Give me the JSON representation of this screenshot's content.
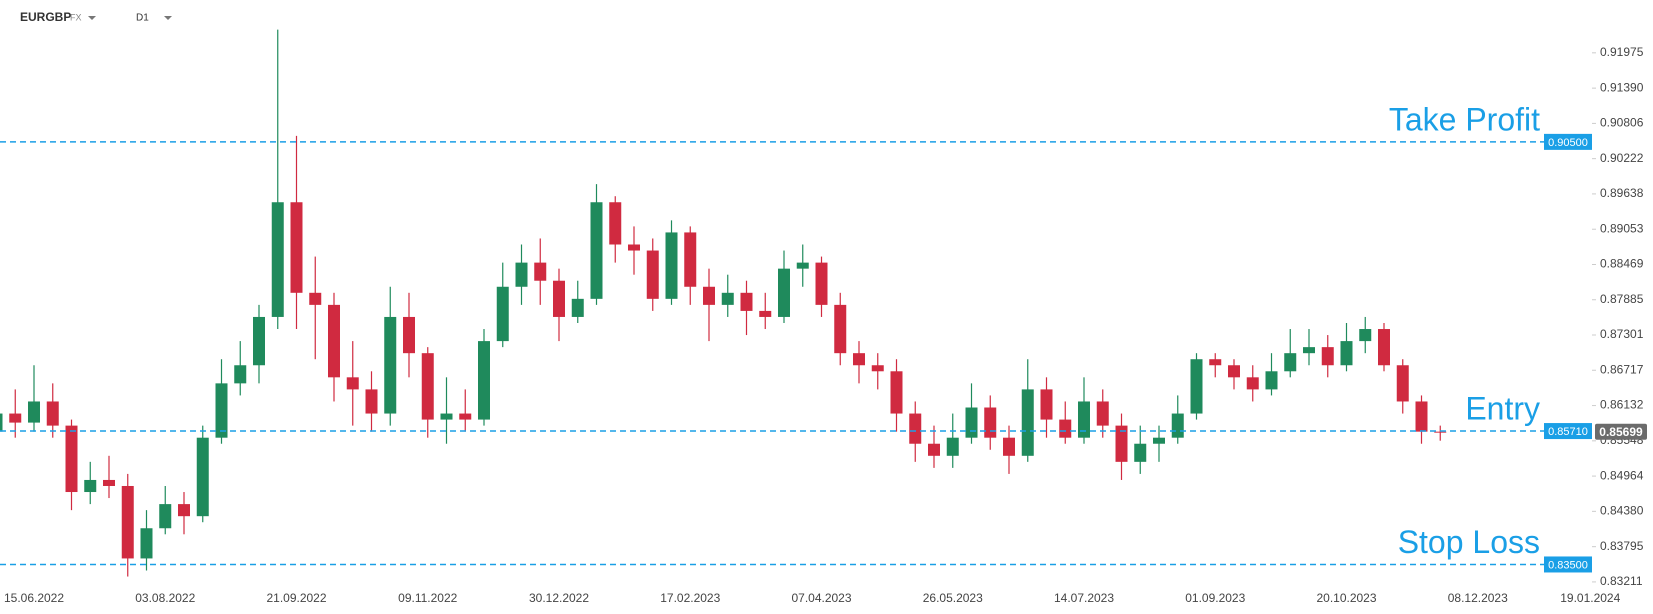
{
  "toolbar": {
    "symbol": "EURGBP",
    "market": "FX",
    "timeframe": "D1"
  },
  "chart_data": {
    "type": "candlestick",
    "categories": [
      null,
      null,
      "15.06.2022",
      null,
      null,
      null,
      null,
      null,
      null,
      "03.08.2022",
      null,
      null,
      null,
      null,
      null,
      null,
      "21.09.2022",
      null,
      null,
      null,
      null,
      null,
      null,
      "09.11.2022",
      null,
      null,
      null,
      null,
      null,
      null,
      "30.12.2022",
      null,
      null,
      null,
      null,
      null,
      null,
      "17.02.2023",
      null,
      null,
      null,
      null,
      null,
      null,
      "07.04.2023",
      null,
      null,
      null,
      null,
      null,
      null,
      "26.05.2023",
      null,
      null,
      null,
      null,
      null,
      null,
      "14.07.2023",
      null,
      null,
      null,
      null,
      null,
      null,
      "01.09.2023",
      null,
      null,
      null,
      null,
      null,
      null,
      "20.10.2023",
      null,
      null,
      null,
      null,
      null,
      null,
      "08.12.2023",
      null,
      null,
      null,
      null,
      null,
      "19.01.2024"
    ],
    "open": [
      0.857,
      0.86,
      0.8585,
      0.862,
      0.858,
      0.847,
      0.849,
      0.848,
      0.836,
      0.841,
      0.845,
      0.843,
      0.856,
      0.865,
      0.868,
      0.876,
      0.895,
      0.88,
      0.878,
      0.866,
      0.864,
      0.86,
      0.876,
      0.87,
      0.859,
      0.86,
      0.859,
      0.872,
      0.881,
      0.885,
      0.882,
      0.876,
      0.879,
      0.895,
      0.888,
      0.887,
      0.879,
      0.89,
      0.881,
      0.878,
      0.88,
      0.877,
      0.876,
      0.884,
      0.885,
      0.878,
      0.87,
      0.868,
      0.867,
      0.86,
      0.855,
      0.853,
      0.856,
      0.861,
      0.856,
      0.853,
      0.864,
      0.859,
      0.856,
      0.862,
      0.858,
      0.852,
      0.855,
      0.856,
      0.86,
      0.869,
      0.868,
      0.866,
      0.864,
      0.867,
      0.87,
      0.871,
      0.868,
      0.872,
      0.874,
      0.868,
      0.862,
      0.857,
      null,
      null,
      null,
      null,
      null,
      null,
      null,
      null
    ],
    "high": [
      0.868,
      0.864,
      0.868,
      0.865,
      0.859,
      0.852,
      0.853,
      0.85,
      0.844,
      0.848,
      0.847,
      0.858,
      0.869,
      0.872,
      0.878,
      0.9236,
      0.906,
      0.886,
      0.88,
      0.872,
      0.867,
      0.881,
      0.88,
      0.871,
      0.866,
      0.864,
      0.874,
      0.885,
      0.888,
      0.889,
      0.884,
      0.882,
      0.898,
      0.896,
      0.891,
      0.889,
      0.892,
      0.891,
      0.884,
      0.883,
      0.882,
      0.88,
      0.887,
      0.888,
      0.886,
      0.88,
      0.872,
      0.87,
      0.869,
      0.862,
      0.858,
      0.86,
      0.865,
      0.863,
      0.858,
      0.869,
      0.866,
      0.862,
      0.866,
      0.864,
      0.86,
      0.858,
      0.858,
      0.863,
      0.87,
      0.87,
      0.869,
      0.868,
      0.87,
      0.874,
      0.874,
      0.873,
      0.875,
      0.876,
      0.875,
      0.869,
      0.863,
      0.858,
      null,
      null,
      null,
      null,
      null,
      null,
      null,
      null
    ],
    "low": [
      0.853,
      0.856,
      0.857,
      0.856,
      0.844,
      0.845,
      0.846,
      0.833,
      0.834,
      0.84,
      0.84,
      0.842,
      0.855,
      0.863,
      0.865,
      0.874,
      0.874,
      0.869,
      0.862,
      0.858,
      0.857,
      0.858,
      0.866,
      0.856,
      0.855,
      0.857,
      0.858,
      0.871,
      0.878,
      0.878,
      0.872,
      0.875,
      0.878,
      0.885,
      0.883,
      0.877,
      0.878,
      0.878,
      0.872,
      0.876,
      0.873,
      0.874,
      0.875,
      0.881,
      0.876,
      0.868,
      0.865,
      0.864,
      0.857,
      0.852,
      0.851,
      0.851,
      0.855,
      0.854,
      0.85,
      0.852,
      0.856,
      0.855,
      0.855,
      0.856,
      0.849,
      0.85,
      0.852,
      0.855,
      0.859,
      0.866,
      0.864,
      0.862,
      0.863,
      0.866,
      0.868,
      0.866,
      0.867,
      0.87,
      0.867,
      0.86,
      0.855,
      0.8555,
      null,
      null,
      null,
      null,
      null,
      null,
      null,
      null
    ],
    "close": [
      0.86,
      0.8585,
      0.862,
      0.858,
      0.847,
      0.849,
      0.848,
      0.836,
      0.841,
      0.845,
      0.843,
      0.856,
      0.865,
      0.868,
      0.876,
      0.895,
      0.88,
      0.878,
      0.866,
      0.864,
      0.86,
      0.876,
      0.87,
      0.859,
      0.86,
      0.859,
      0.872,
      0.881,
      0.885,
      0.882,
      0.876,
      0.879,
      0.895,
      0.888,
      0.887,
      0.879,
      0.89,
      0.881,
      0.878,
      0.88,
      0.877,
      0.876,
      0.884,
      0.885,
      0.878,
      0.87,
      0.868,
      0.867,
      0.86,
      0.855,
      0.853,
      0.856,
      0.861,
      0.856,
      0.853,
      0.864,
      0.859,
      0.856,
      0.862,
      0.858,
      0.852,
      0.855,
      0.856,
      0.86,
      0.869,
      0.868,
      0.866,
      0.864,
      0.867,
      0.87,
      0.871,
      0.868,
      0.872,
      0.874,
      0.868,
      0.862,
      0.857,
      0.85699,
      null,
      null,
      null,
      null,
      null,
      null,
      null,
      null
    ],
    "up_color": "#1f8a5c",
    "down_color": "#d02a40",
    "ylim": [
      0.8316,
      0.9285
    ],
    "yticks": [
      0.91975,
      {
        "value": 0.9139,
        "label": "0.91390"
      },
      0.90806,
      0.90222,
      0.89638,
      0.89053,
      0.88469,
      0.87885,
      0.87301,
      0.86717,
      0.86132,
      0.85548,
      0.84964,
      {
        "value": 0.8438,
        "label": "0.84380"
      },
      0.83795,
      0.83211
    ],
    "levels": [
      {
        "name": "Take Profit",
        "value": 0.905,
        "value_label": "0.90500"
      },
      {
        "name": "Entry",
        "value": 0.8571,
        "value_label": "0.85710"
      },
      {
        "name": "Stop Loss",
        "value": 0.835,
        "value_label": "0.83500"
      }
    ],
    "level_color": "#1a9fe6",
    "last_price_color": "#6b6b6b"
  }
}
